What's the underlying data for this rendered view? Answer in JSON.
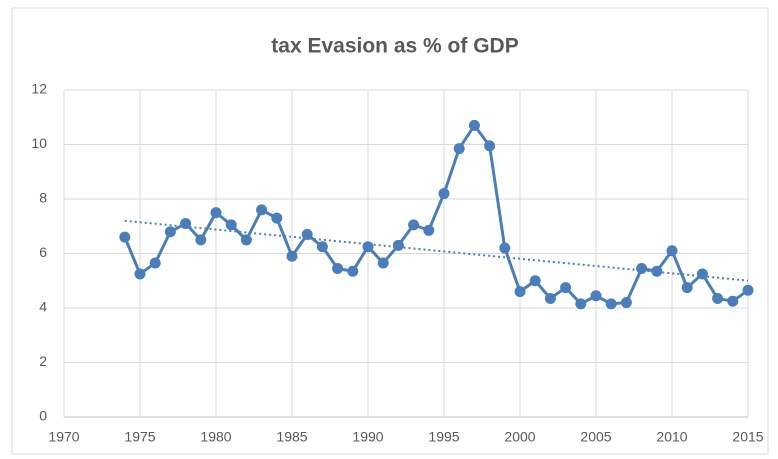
{
  "chart_data": {
    "type": "line",
    "title": "tax Evasion as % of GDP",
    "x": [
      1974,
      1975,
      1976,
      1977,
      1978,
      1979,
      1980,
      1981,
      1982,
      1983,
      1984,
      1985,
      1986,
      1987,
      1988,
      1989,
      1990,
      1991,
      1992,
      1993,
      1994,
      1995,
      1996,
      1997,
      1998,
      1999,
      2000,
      2001,
      2002,
      2003,
      2004,
      2005,
      2006,
      2007,
      2008,
      2009,
      2010,
      2011,
      2012,
      2013,
      2014,
      2015
    ],
    "values": [
      6.6,
      5.25,
      5.65,
      6.8,
      7.1,
      6.5,
      7.5,
      7.05,
      6.5,
      7.6,
      7.3,
      5.9,
      6.7,
      6.25,
      5.45,
      5.35,
      6.25,
      5.65,
      6.3,
      7.05,
      6.85,
      8.2,
      9.85,
      10.7,
      9.95,
      6.2,
      4.6,
      5.0,
      4.35,
      4.75,
      4.15,
      4.45,
      4.15,
      4.2,
      5.45,
      5.35,
      6.1,
      4.75,
      5.25,
      4.35,
      4.25,
      4.65
    ],
    "color": "#4a7ebb",
    "markers": true,
    "trendline": "linear",
    "xlim": [
      1970,
      2015
    ],
    "xticks": [
      1970,
      1975,
      1980,
      1985,
      1990,
      1995,
      2000,
      2005,
      2010,
      2015
    ],
    "ylim": [
      0,
      12
    ],
    "yticks": [
      0,
      2,
      4,
      6,
      8,
      10,
      12
    ],
    "grid": true
  }
}
